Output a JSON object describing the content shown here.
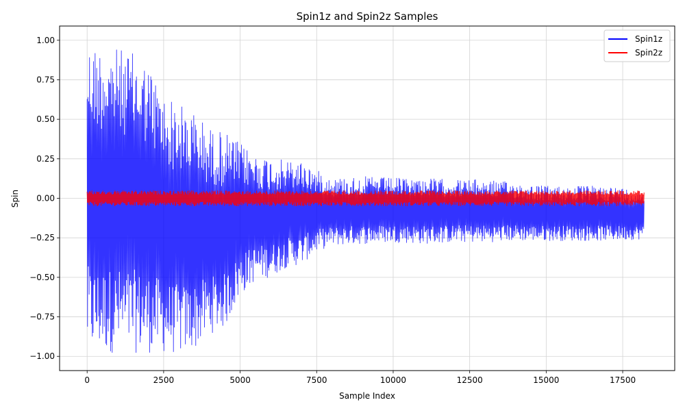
{
  "chart_data": {
    "type": "line",
    "title": "Spin1z and Spin2z Samples",
    "xlabel": "Sample Index",
    "ylabel": "Spin",
    "xlim": [
      -900,
      19200
    ],
    "ylim": [
      -1.09,
      1.09
    ],
    "xticks": [
      0,
      2500,
      5000,
      7500,
      10000,
      12500,
      15000,
      17500
    ],
    "xtick_labels": [
      "0",
      "2500",
      "5000",
      "7500",
      "10000",
      "12500",
      "15000",
      "17500"
    ],
    "yticks": [
      -1.0,
      -0.75,
      -0.5,
      -0.25,
      0.0,
      0.25,
      0.5,
      0.75,
      1.0
    ],
    "ytick_labels": [
      "−1.00",
      "−0.75",
      "−0.50",
      "−0.25",
      "0.00",
      "0.25",
      "0.50",
      "0.75",
      "1.00"
    ],
    "grid": true,
    "legend_position": "top-right",
    "n_samples": 18200,
    "series": [
      {
        "name": "Spin1z",
        "color": "#0000ff",
        "envelope": {
          "x": [
            0,
            500,
            1000,
            1500,
            2000,
            2500,
            3000,
            3500,
            4000,
            4500,
            5000,
            5500,
            6000,
            6500,
            7000,
            7500,
            8000,
            9000,
            10000,
            11000,
            12000,
            13000,
            14000,
            15000,
            16000,
            17000,
            18200
          ],
          "upper": [
            0.99,
            0.97,
            0.95,
            0.92,
            0.85,
            0.66,
            0.6,
            0.55,
            0.45,
            0.42,
            0.35,
            0.28,
            0.26,
            0.24,
            0.24,
            0.18,
            0.13,
            0.14,
            0.13,
            0.13,
            0.12,
            0.12,
            0.1,
            0.08,
            0.08,
            0.08,
            0.05
          ],
          "lower": [
            -0.98,
            -0.98,
            -0.98,
            -0.98,
            -0.98,
            -0.98,
            -0.99,
            -0.96,
            -0.86,
            -0.82,
            -0.62,
            -0.52,
            -0.5,
            -0.44,
            -0.42,
            -0.34,
            -0.3,
            -0.29,
            -0.28,
            -0.29,
            -0.28,
            -0.28,
            -0.27,
            -0.27,
            -0.27,
            -0.27,
            -0.26
          ]
        }
      },
      {
        "name": "Spin2z",
        "color": "#ff0000",
        "envelope": {
          "x": [
            0,
            18200
          ],
          "upper": [
            0.05,
            0.05
          ],
          "lower": [
            -0.05,
            -0.05
          ]
        }
      }
    ]
  }
}
